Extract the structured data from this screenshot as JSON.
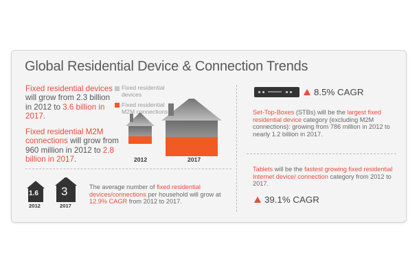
{
  "title": "Global Residential Device & Connection Trends",
  "colors": {
    "accent": "#e84c3d",
    "orange": "#f15a24",
    "house_gray": "#8a8a8a"
  },
  "left": {
    "p1": {
      "r1": "Fixed residential devices",
      "t1": " will grow from 2.3 billion in 2012 to ",
      "r2": "3.6 billion in 2017",
      "t2": "."
    },
    "p2": {
      "r1": "Fixed residential M2M connections",
      "t1": " will grow from 960 million in 2012 to ",
      "r2": "2.8 billion in 2017",
      "t2": "."
    }
  },
  "legend": {
    "devices": "Fixed residential devices",
    "m2m": "Fixed residential M2M connections"
  },
  "house_years": {
    "a": "2012",
    "b": "2017"
  },
  "per_household": {
    "v2012": "1.6",
    "y2012": "2012",
    "v2017": "3",
    "y2017": "2017",
    "t1": "The average number of ",
    "r1": "fixed residential devices/connections",
    "t2": " per household will grow at ",
    "r2": "12.9% CAGR",
    "t3": " from 2012 to 2017."
  },
  "stb": {
    "cagr": "8.5% CAGR",
    "r1": "Set-Top-Boxes",
    "t1": " (STBs) will be the ",
    "r2": "largest fixed residential device",
    "t2": " category (excluding M2M connections): growing from 786 million in 2012 to nearly 1.2 billion in 2017."
  },
  "tablets": {
    "r1": "Tablets",
    "t1": " will be the ",
    "r2": "fastest growing fixed residential Internet device/ connection",
    "t2": " category from 2012 to 2017.",
    "cagr": "39.1% CAGR"
  }
}
